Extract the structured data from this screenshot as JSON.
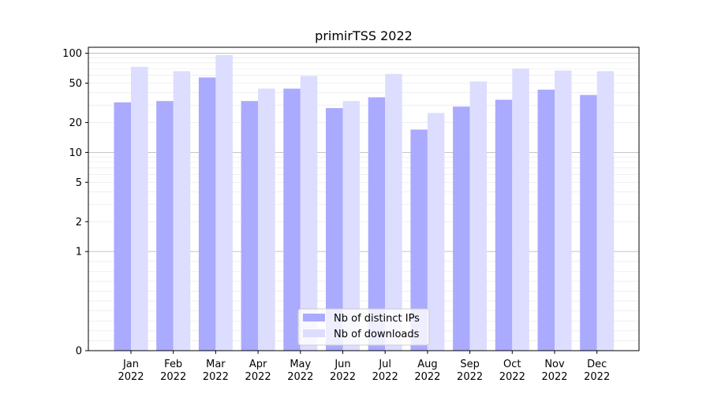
{
  "chart_data": {
    "type": "bar",
    "title": "primirTSS 2022",
    "xlabel": "",
    "ylabel": "",
    "yscale": "symlog",
    "ylim": [
      0,
      115
    ],
    "y_ticks": [
      0,
      1,
      2,
      5,
      10,
      20,
      50,
      100
    ],
    "grid": "horizontal",
    "legend_position": "bottom-center",
    "categories": [
      "Jan\n2022",
      "Feb\n2022",
      "Mar\n2022",
      "Apr\n2022",
      "May\n2022",
      "Jun\n2022",
      "Jul\n2022",
      "Aug\n2022",
      "Sep\n2022",
      "Oct\n2022",
      "Nov\n2022",
      "Dec\n2022"
    ],
    "series": [
      {
        "name": "Nb of distinct IPs",
        "color": "#aaaaff",
        "values": [
          32,
          33,
          57,
          33,
          44,
          28,
          36,
          17,
          29,
          34,
          43,
          38
        ]
      },
      {
        "name": "Nb of downloads",
        "color": "#ddddff",
        "values": [
          73,
          66,
          96,
          44,
          59,
          33,
          62,
          25,
          52,
          70,
          67,
          66
        ]
      }
    ]
  }
}
